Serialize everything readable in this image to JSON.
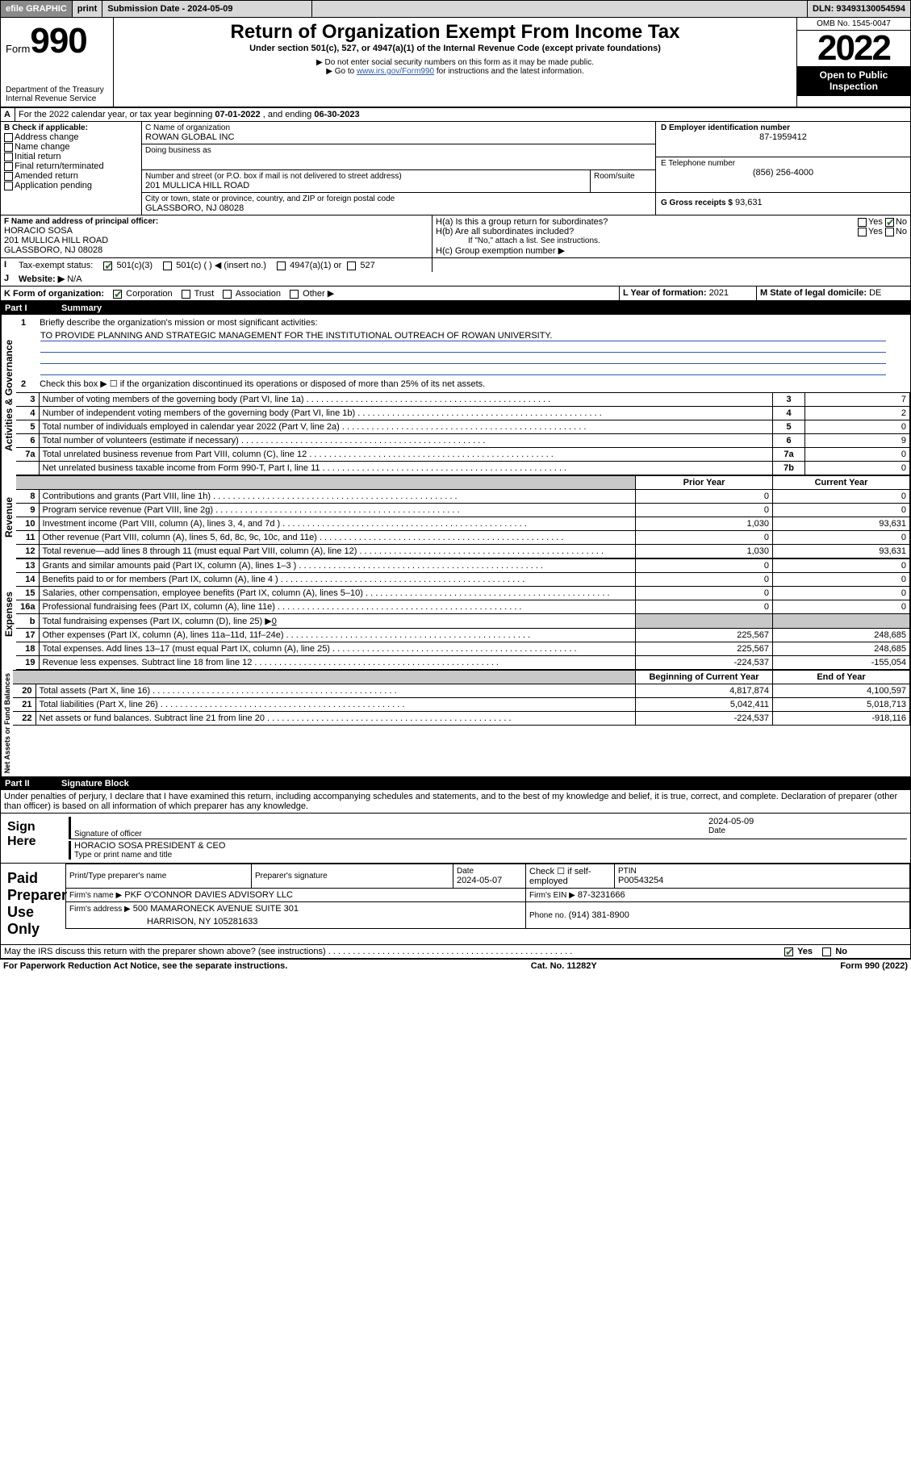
{
  "topbar": {
    "efile": "efile GRAPHIC",
    "print": "print",
    "subdate_label": "Submission Date - 2024-05-09",
    "dln": "DLN: 93493130054594"
  },
  "header": {
    "form_label": "Form",
    "form_num": "990",
    "dept": "Department of the Treasury",
    "irs": "Internal Revenue Service",
    "title": "Return of Organization Exempt From Income Tax",
    "subtitle": "Under section 501(c), 527, or 4947(a)(1) of the Internal Revenue Code (except private foundations)",
    "note1": "▶ Do not enter social security numbers on this form as it may be made public.",
    "note2_pre": "▶ Go to ",
    "note2_link": "www.irs.gov/Form990",
    "note2_post": " for instructions and the latest information.",
    "omb": "OMB No. 1545-0047",
    "year": "2022",
    "inspect": "Open to Public Inspection"
  },
  "periodA": {
    "text_pre": "For the 2022 calendar year, or tax year beginning ",
    "begin": "07-01-2022",
    "mid": " , and ending ",
    "end": "06-30-2023"
  },
  "sectionB": {
    "label": "B Check if applicable:",
    "items": [
      "Address change",
      "Name change",
      "Initial return",
      "Final return/terminated",
      "Amended return",
      "Application pending"
    ]
  },
  "sectionC": {
    "name_label": "C Name of organization",
    "name": "ROWAN GLOBAL INC",
    "dba_label": "Doing business as",
    "dba": "",
    "addr_label": "Number and street (or P.O. box if mail is not delivered to street address)",
    "room_label": "Room/suite",
    "addr": "201 MULLICA HILL ROAD",
    "city_label": "City or town, state or province, country, and ZIP or foreign postal code",
    "city": "GLASSBORO, NJ  08028"
  },
  "sectionD": {
    "label": "D Employer identification number",
    "value": "87-1959412"
  },
  "sectionE": {
    "label": "E Telephone number",
    "value": "(856) 256-4000"
  },
  "sectionG": {
    "label": "G Gross receipts $",
    "value": "93,631"
  },
  "sectionF": {
    "label": "F Name and address of principal officer:",
    "name": "HORACIO SOSA",
    "addr1": "201 MULLICA HILL ROAD",
    "addr2": "GLASSBORO, NJ  08028"
  },
  "sectionH": {
    "ha_label": "H(a)  Is this a group return for subordinates?",
    "hb_label": "H(b)  Are all subordinates included?",
    "hb_note": "If \"No,\" attach a list. See instructions.",
    "hc_label": "H(c)  Group exemption number ▶",
    "yes": "Yes",
    "no": "No"
  },
  "sectionI": {
    "label": "Tax-exempt status:",
    "opt1": "501(c)(3)",
    "opt2": "501(c) (   ) ◀ (insert no.)",
    "opt3": "4947(a)(1) or",
    "opt4": "527"
  },
  "sectionJ": {
    "label": "Website: ▶",
    "value": "N/A"
  },
  "sectionK": {
    "label": "K Form of organization:",
    "opts": [
      "Corporation",
      "Trust",
      "Association",
      "Other ▶"
    ]
  },
  "sectionL": {
    "label": "L Year of formation:",
    "value": "2021"
  },
  "sectionM": {
    "label": "M State of legal domicile:",
    "value": "DE"
  },
  "part1": {
    "name": "Part I",
    "title": "Summary",
    "q1_label": "Briefly describe the organization's mission or most significant activities:",
    "q1_text": "TO PROVIDE PLANNING AND STRATEGIC MANAGEMENT FOR THE INSTITUTIONAL OUTREACH OF ROWAN UNIVERSITY.",
    "q2": "Check this box ▶ ☐  if the organization discontinued its operations or disposed of more than 25% of its net assets.",
    "governance_rows": [
      {
        "n": "3",
        "text": "Number of voting members of the governing body (Part VI, line 1a)",
        "k": "3",
        "v": "7"
      },
      {
        "n": "4",
        "text": "Number of independent voting members of the governing body (Part VI, line 1b)",
        "k": "4",
        "v": "2"
      },
      {
        "n": "5",
        "text": "Total number of individuals employed in calendar year 2022 (Part V, line 2a)",
        "k": "5",
        "v": "0"
      },
      {
        "n": "6",
        "text": "Total number of volunteers (estimate if necessary)",
        "k": "6",
        "v": "9"
      },
      {
        "n": "7a",
        "text": "Total unrelated business revenue from Part VIII, column (C), line 12",
        "k": "7a",
        "v": "0"
      },
      {
        "n": "",
        "text": "Net unrelated business taxable income from Form 990-T, Part I, line 11",
        "k": "7b",
        "v": "0"
      }
    ],
    "col_prior": "Prior Year",
    "col_current": "Current Year",
    "revenue_rows": [
      {
        "n": "8",
        "text": "Contributions and grants (Part VIII, line 1h)",
        "p": "0",
        "c": "0"
      },
      {
        "n": "9",
        "text": "Program service revenue (Part VIII, line 2g)",
        "p": "0",
        "c": "0"
      },
      {
        "n": "10",
        "text": "Investment income (Part VIII, column (A), lines 3, 4, and 7d )",
        "p": "1,030",
        "c": "93,631"
      },
      {
        "n": "11",
        "text": "Other revenue (Part VIII, column (A), lines 5, 6d, 8c, 9c, 10c, and 11e)",
        "p": "0",
        "c": "0"
      },
      {
        "n": "12",
        "text": "Total revenue—add lines 8 through 11 (must equal Part VIII, column (A), line 12)",
        "p": "1,030",
        "c": "93,631"
      }
    ],
    "expense_rows": [
      {
        "n": "13",
        "text": "Grants and similar amounts paid (Part IX, column (A), lines 1–3 )",
        "p": "0",
        "c": "0"
      },
      {
        "n": "14",
        "text": "Benefits paid to or for members (Part IX, column (A), line 4 )",
        "p": "0",
        "c": "0"
      },
      {
        "n": "15",
        "text": "Salaries, other compensation, employee benefits (Part IX, column (A), lines 5–10)",
        "p": "0",
        "c": "0"
      },
      {
        "n": "16a",
        "text": "Professional fundraising fees (Part IX, column (A), line 11e)",
        "p": "0",
        "c": "0"
      }
    ],
    "row16b_label": "Total fundraising expenses (Part IX, column (D), line 25) ▶",
    "row16b_val": "0",
    "expense_rows2": [
      {
        "n": "17",
        "text": "Other expenses (Part IX, column (A), lines 11a–11d, 11f–24e)",
        "p": "225,567",
        "c": "248,685"
      },
      {
        "n": "18",
        "text": "Total expenses. Add lines 13–17 (must equal Part IX, column (A), line 25)",
        "p": "225,567",
        "c": "248,685"
      },
      {
        "n": "19",
        "text": "Revenue less expenses. Subtract line 18 from line 12",
        "p": "-224,537",
        "c": "-155,054"
      }
    ],
    "col_beg": "Beginning of Current Year",
    "col_end": "End of Year",
    "net_rows": [
      {
        "n": "20",
        "text": "Total assets (Part X, line 16)",
        "p": "4,817,874",
        "c": "4,100,597"
      },
      {
        "n": "21",
        "text": "Total liabilities (Part X, line 26)",
        "p": "5,042,411",
        "c": "5,018,713"
      },
      {
        "n": "22",
        "text": "Net assets or fund balances. Subtract line 21 from line 20",
        "p": "-224,537",
        "c": "-918,116"
      }
    ],
    "vlabels": {
      "gov": "Activities & Governance",
      "rev": "Revenue",
      "exp": "Expenses",
      "net": "Net Assets or Fund Balances"
    }
  },
  "part2": {
    "name": "Part II",
    "title": "Signature Block",
    "decl": "Under penalties of perjury, I declare that I have examined this return, including accompanying schedules and statements, and to the best of my knowledge and belief, it is true, correct, and complete. Declaration of preparer (other than officer) is based on all information of which preparer has any knowledge.",
    "sign_here": "Sign Here",
    "sig_officer": "Signature of officer",
    "sig_date": "Date",
    "sig_date_val": "2024-05-09",
    "officer_name": "HORACIO SOSA  PRESIDENT & CEO",
    "officer_label": "Type or print name and title",
    "paid": "Paid Preparer Use Only",
    "prep_name_label": "Print/Type preparer's name",
    "prep_sig_label": "Preparer's signature",
    "prep_date_label": "Date",
    "prep_date": "2024-05-07",
    "check_if": "Check ☐ if self-employed",
    "ptin_label": "PTIN",
    "ptin": "P00543254",
    "firm_name_label": "Firm's name    ▶",
    "firm_name": "PKF O'CONNOR DAVIES ADVISORY LLC",
    "firm_ein_label": "Firm's EIN ▶",
    "firm_ein": "87-3231666",
    "firm_addr_label": "Firm's address ▶",
    "firm_addr1": "500 MAMARONECK AVENUE SUITE 301",
    "firm_addr2": "HARRISON, NY  105281633",
    "phone_label": "Phone no.",
    "phone": "(914) 381-8900",
    "discuss": "May the IRS discuss this return with the preparer shown above? (see instructions)"
  },
  "footer": {
    "left": "For Paperwork Reduction Act Notice, see the separate instructions.",
    "mid": "Cat. No. 11282Y",
    "right_pre": "Form ",
    "right_form": "990",
    "right_post": " (2022)"
  }
}
